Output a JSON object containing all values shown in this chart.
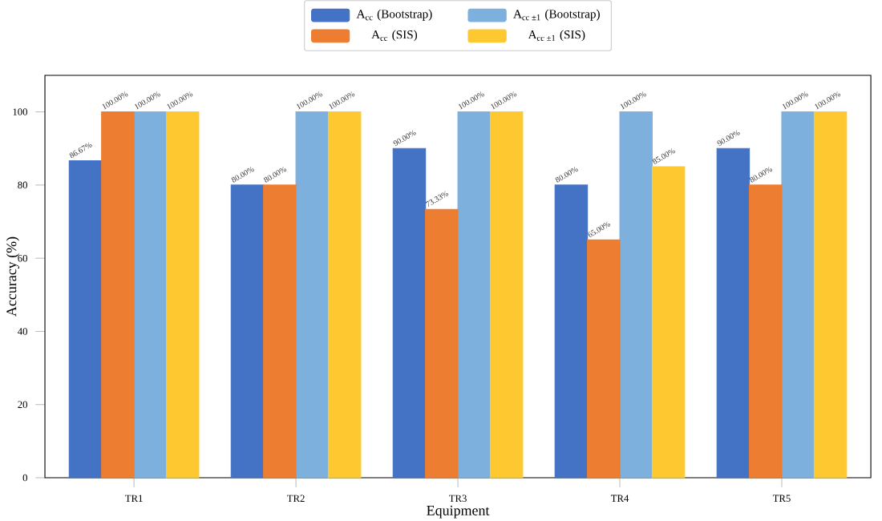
{
  "chart_data": {
    "type": "bar",
    "xlabel": "Equipment",
    "ylabel": "Accuracy (%)",
    "categories": [
      "TR1",
      "TR2",
      "TR3",
      "TR4",
      "TR5"
    ],
    "ylim": [
      0,
      110
    ],
    "yticks": [
      0,
      20,
      40,
      60,
      80,
      100
    ],
    "legend": "top",
    "series": [
      {
        "name": "A$_{cc}$ (Bootstrap)",
        "color": "#4472c4",
        "values": [
          86.67,
          80,
          90,
          80,
          90
        ],
        "value_labels": [
          "86.67%",
          "80.00%",
          "90.00%",
          "80.00%",
          "90.00%"
        ]
      },
      {
        "name": "A$_{cc}$ (SIS)",
        "color": "#ed7d31",
        "values": [
          100,
          80,
          73.33,
          65,
          80
        ],
        "value_labels": [
          "100.00%",
          "80.00%",
          "73.33%",
          "65.00%",
          "80.00%"
        ]
      },
      {
        "name": "A$_{cc ±1}$ (Bootstrap)",
        "color": "#7eb0de",
        "values": [
          100,
          100,
          100,
          100,
          100
        ],
        "value_labels": [
          "100.00%",
          "100.00%",
          "100.00%",
          "100.00%",
          "100.00%"
        ]
      },
      {
        "name": "A$_{cc ±1}$ (SIS)",
        "color": "#fdc830",
        "values": [
          100,
          100,
          100,
          85,
          100
        ],
        "value_labels": [
          "100.00%",
          "100.00%",
          "100.00%",
          "85.00%",
          "100.00%"
        ]
      }
    ]
  }
}
